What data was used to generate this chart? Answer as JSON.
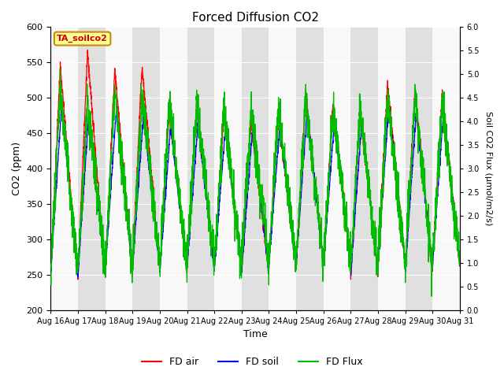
{
  "title": "Forced Diffusion CO2",
  "xlabel": "Time",
  "ylabel_left": "CO2 (ppm)",
  "ylabel_right": "Soil CO2 Flux (μmol/m2/s)",
  "ylim_left": [
    200,
    600
  ],
  "ylim_right": [
    0.0,
    6.0
  ],
  "yticks_left": [
    200,
    250,
    300,
    350,
    400,
    450,
    500,
    550,
    600
  ],
  "yticks_right": [
    0.0,
    0.5,
    1.0,
    1.5,
    2.0,
    2.5,
    3.0,
    3.5,
    4.0,
    4.5,
    5.0,
    5.5,
    6.0
  ],
  "xtick_labels": [
    "Aug 16",
    "Aug 17",
    "Aug 18",
    "Aug 19",
    "Aug 20",
    "Aug 21",
    "Aug 22",
    "Aug 23",
    "Aug 24",
    "Aug 25",
    "Aug 26",
    "Aug 27",
    "Aug 28",
    "Aug 29",
    "Aug 30",
    "Aug 31"
  ],
  "color_air": "#ff0000",
  "color_soil": "#0000ff",
  "color_flux": "#00bb00",
  "legend_labels": [
    "FD air",
    "FD soil",
    "FD Flux"
  ],
  "annotation_text": "TA_soilco2",
  "annotation_color": "#cc0000",
  "annotation_bg": "#ffff99",
  "annotation_border": "#cc8800",
  "n_days": 15,
  "background_gray": "#e0e0e0",
  "background_white": "#f8f8f8",
  "grid_color": "#ffffff",
  "title_fontsize": 11,
  "air_peaks": [
    545,
    565,
    540,
    545,
    480,
    490,
    475,
    465,
    475,
    505,
    490,
    480,
    520,
    510,
    505
  ],
  "air_mins": [
    250,
    250,
    255,
    260,
    255,
    260,
    260,
    255,
    265,
    265,
    265,
    250,
    265,
    255,
    265
  ],
  "soil_peaks": [
    490,
    480,
    480,
    475,
    460,
    465,
    455,
    455,
    460,
    480,
    465,
    465,
    490,
    480,
    480
  ],
  "soil_mins": [
    250,
    250,
    255,
    260,
    255,
    260,
    260,
    255,
    265,
    265,
    265,
    250,
    265,
    255,
    265
  ],
  "flux_peaks": [
    4.7,
    4.4,
    4.6,
    4.5,
    4.4,
    4.4,
    4.3,
    4.3,
    4.3,
    4.5,
    4.3,
    4.3,
    4.5,
    4.5,
    4.4
  ],
  "flux_mins": [
    0.8,
    0.9,
    0.9,
    1.0,
    0.9,
    1.0,
    0.9,
    1.0,
    1.0,
    1.0,
    1.0,
    0.9,
    1.0,
    0.9,
    1.0
  ],
  "peak_phase": 0.35,
  "linewidth": 0.9
}
